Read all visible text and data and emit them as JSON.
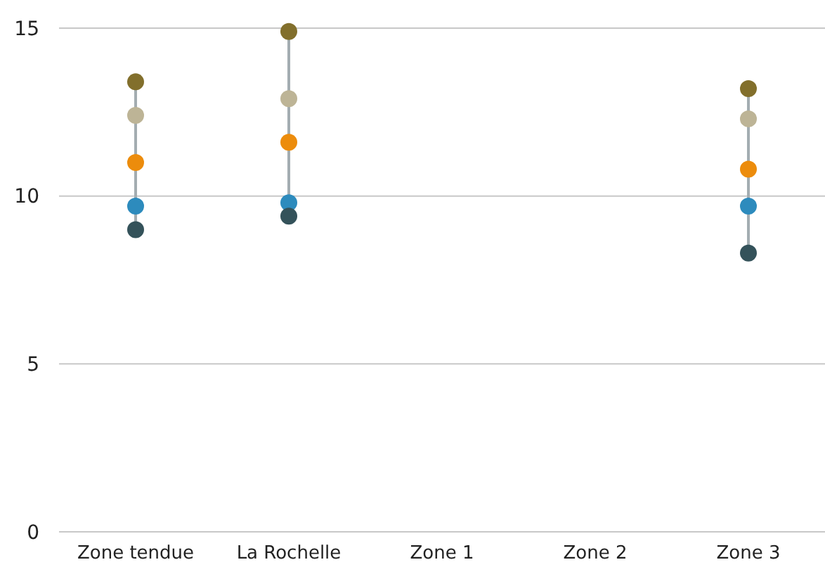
{
  "chart_data": {
    "type": "scatter",
    "categories": [
      "Zone tendue",
      "La Rochelle",
      "Zone 1",
      "Zone 2",
      "Zone 3"
    ],
    "ylim": [
      0,
      15
    ],
    "yticks": [
      0,
      5,
      10,
      15
    ],
    "grid": "y",
    "marker": "circle",
    "series": [
      {
        "color": "#826f2c",
        "values": [
          13.4,
          14.9,
          null,
          null,
          13.2
        ]
      },
      {
        "color": "#bdb496",
        "values": [
          12.4,
          12.9,
          null,
          null,
          12.3
        ]
      },
      {
        "color": "#ec8c0c",
        "values": [
          11.0,
          11.6,
          null,
          null,
          10.8
        ]
      },
      {
        "color": "#2d8bbd",
        "values": [
          9.7,
          9.8,
          null,
          null,
          9.7
        ]
      },
      {
        "color": "#34525a",
        "values": [
          9.0,
          9.4,
          null,
          null,
          8.3
        ]
      }
    ]
  }
}
